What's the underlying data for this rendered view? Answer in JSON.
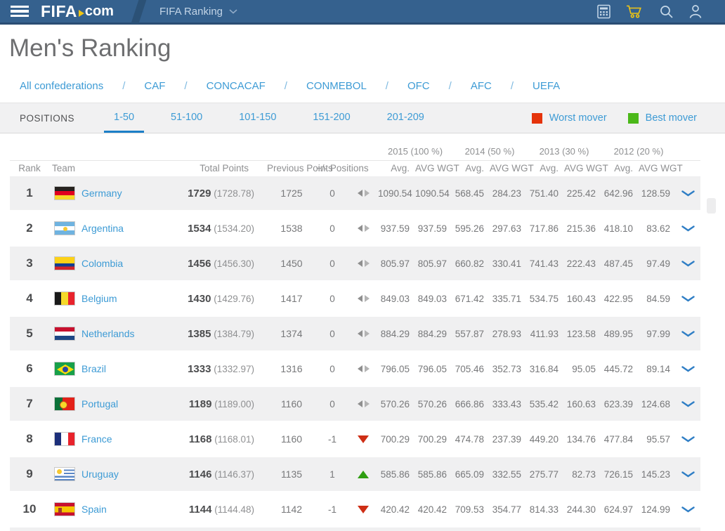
{
  "navbar": {
    "brand": {
      "fifa": "FIFA",
      "com": "com"
    },
    "breadcrumb": {
      "label": "FIFA Ranking"
    },
    "icons": [
      "calculator",
      "cart",
      "search",
      "user"
    ],
    "colors": {
      "background": "#35618e",
      "cart": "#f0c514",
      "icon": "#c6d8e8"
    }
  },
  "page": {
    "title": "Men's Ranking"
  },
  "confederations": [
    "All confederations",
    "CAF",
    "CONCACAF",
    "CONMEBOL",
    "OFC",
    "AFC",
    "UEFA"
  ],
  "positions": {
    "label": "POSITIONS",
    "tabs": [
      {
        "label": "1-50",
        "active": true
      },
      {
        "label": "51-100",
        "active": false
      },
      {
        "label": "101-150",
        "active": false
      },
      {
        "label": "151-200",
        "active": false
      },
      {
        "label": "201-209",
        "active": false
      }
    ],
    "legend": [
      {
        "label": "Worst mover",
        "color": "#e5330a"
      },
      {
        "label": "Best mover",
        "color": "#4bb819"
      }
    ]
  },
  "table": {
    "year_groups": [
      "2015 (100 %)",
      "2014 (50 %)",
      "2013 (30 %)",
      "2012 (20 %)"
    ],
    "columns": {
      "rank": "Rank",
      "team": "Team",
      "total": "Total Points",
      "previous": "Previous Points",
      "change": "+/- Positions",
      "avg": "Avg.",
      "avg_wgt": "AVG WGT"
    },
    "rows": [
      {
        "rank": "1",
        "team": "Germany",
        "flag": "de",
        "total": "1729",
        "total_precise": "(1728.78)",
        "previous": "1725",
        "change": "0",
        "movement": "same",
        "values": [
          "1090.54",
          "1090.54",
          "568.45",
          "284.23",
          "751.40",
          "225.42",
          "642.96",
          "128.59"
        ]
      },
      {
        "rank": "2",
        "team": "Argentina",
        "flag": "ar",
        "total": "1534",
        "total_precise": "(1534.20)",
        "previous": "1538",
        "change": "0",
        "movement": "same",
        "values": [
          "937.59",
          "937.59",
          "595.26",
          "297.63",
          "717.86",
          "215.36",
          "418.10",
          "83.62"
        ]
      },
      {
        "rank": "3",
        "team": "Colombia",
        "flag": "co",
        "total": "1456",
        "total_precise": "(1456.30)",
        "previous": "1450",
        "change": "0",
        "movement": "same",
        "values": [
          "805.97",
          "805.97",
          "660.82",
          "330.41",
          "741.43",
          "222.43",
          "487.45",
          "97.49"
        ]
      },
      {
        "rank": "4",
        "team": "Belgium",
        "flag": "be",
        "total": "1430",
        "total_precise": "(1429.76)",
        "previous": "1417",
        "change": "0",
        "movement": "same",
        "values": [
          "849.03",
          "849.03",
          "671.42",
          "335.71",
          "534.75",
          "160.43",
          "422.95",
          "84.59"
        ]
      },
      {
        "rank": "5",
        "team": "Netherlands",
        "flag": "nl",
        "total": "1385",
        "total_precise": "(1384.79)",
        "previous": "1374",
        "change": "0",
        "movement": "same",
        "values": [
          "884.29",
          "884.29",
          "557.87",
          "278.93",
          "411.93",
          "123.58",
          "489.95",
          "97.99"
        ]
      },
      {
        "rank": "6",
        "team": "Brazil",
        "flag": "br",
        "total": "1333",
        "total_precise": "(1332.97)",
        "previous": "1316",
        "change": "0",
        "movement": "same",
        "values": [
          "796.05",
          "796.05",
          "705.46",
          "352.73",
          "316.84",
          "95.05",
          "445.72",
          "89.14"
        ]
      },
      {
        "rank": "7",
        "team": "Portugal",
        "flag": "pt",
        "total": "1189",
        "total_precise": "(1189.00)",
        "previous": "1160",
        "change": "0",
        "movement": "same",
        "values": [
          "570.26",
          "570.26",
          "666.86",
          "333.43",
          "535.42",
          "160.63",
          "623.39",
          "124.68"
        ]
      },
      {
        "rank": "8",
        "team": "France",
        "flag": "fr",
        "total": "1168",
        "total_precise": "(1168.01)",
        "previous": "1160",
        "change": "-1",
        "movement": "down",
        "values": [
          "700.29",
          "700.29",
          "474.78",
          "237.39",
          "449.20",
          "134.76",
          "477.84",
          "95.57"
        ]
      },
      {
        "rank": "9",
        "team": "Uruguay",
        "flag": "uy",
        "total": "1146",
        "total_precise": "(1146.37)",
        "previous": "1135",
        "change": "1",
        "movement": "up",
        "values": [
          "585.86",
          "585.86",
          "665.09",
          "332.55",
          "275.77",
          "82.73",
          "726.15",
          "145.23"
        ]
      },
      {
        "rank": "10",
        "team": "Spain",
        "flag": "es",
        "total": "1144",
        "total_precise": "(1144.48)",
        "previous": "1142",
        "change": "-1",
        "movement": "down",
        "values": [
          "420.42",
          "420.42",
          "709.53",
          "354.77",
          "814.33",
          "244.30",
          "624.97",
          "124.99"
        ]
      }
    ]
  }
}
